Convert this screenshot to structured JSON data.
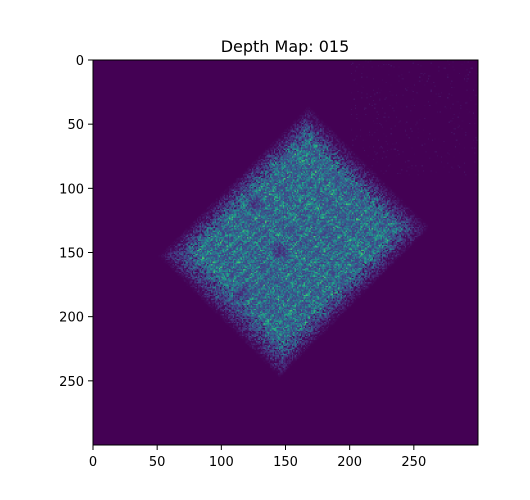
{
  "chart_data": {
    "type": "heatmap",
    "title": "Depth Map: 015",
    "xlabel": "",
    "ylabel": "",
    "xlim": [
      0,
      300
    ],
    "ylim": [
      300,
      0
    ],
    "xticks": [
      0,
      50,
      100,
      150,
      200,
      250
    ],
    "yticks": [
      0,
      50,
      100,
      150,
      200,
      250
    ],
    "xtick_labels": [
      "0",
      "50",
      "100",
      "150",
      "200",
      "250"
    ],
    "ytick_labels": [
      "0",
      "50",
      "100",
      "150",
      "200",
      "250"
    ],
    "grid": false,
    "colormap": "viridis",
    "background_color": "#440154",
    "object": {
      "shape": "rotated square",
      "vertices": [
        [
          165,
          45
        ],
        [
          250,
          130
        ],
        [
          150,
          240
        ],
        [
          60,
          150
        ]
      ],
      "intensity_range": [
        0.0,
        0.75
      ],
      "notable_holes": [
        [
          125,
          112
        ],
        [
          145,
          148
        ],
        [
          115,
          182
        ]
      ]
    }
  }
}
